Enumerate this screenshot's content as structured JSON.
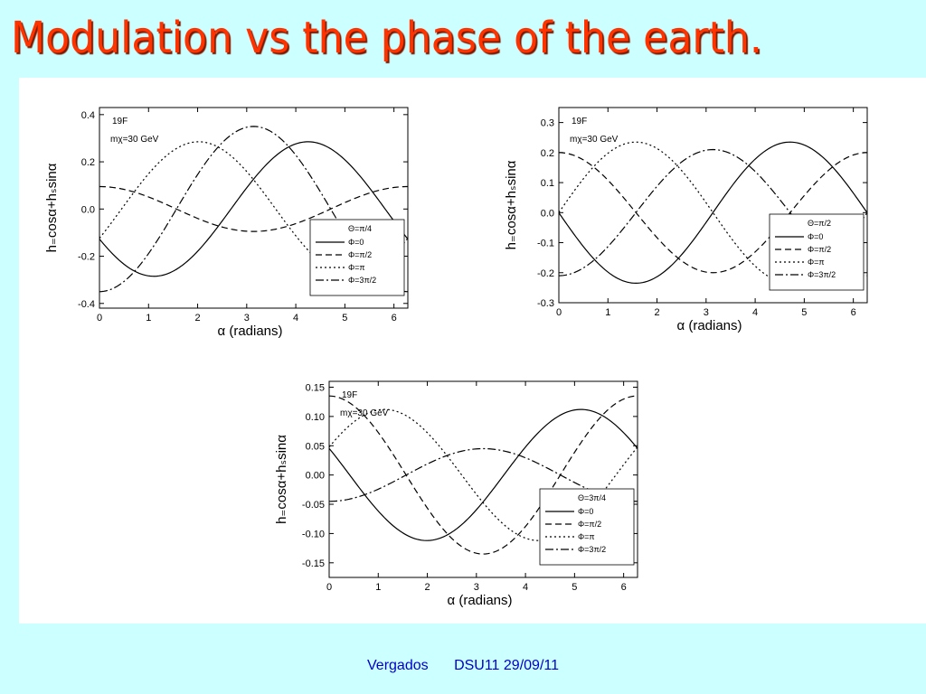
{
  "slide": {
    "title": "Modulation vs the phase of the earth."
  },
  "footer": {
    "author": "Vergados",
    "event_date": "DSU11  29/09/11"
  },
  "chart_data": [
    {
      "type": "line",
      "isotope": "19F",
      "mass_label": "mχ=30 GeV",
      "xlabel": "α (radians)",
      "ylabel": "h₌cosα+hₛsinα",
      "xlim": [
        0,
        6.283
      ],
      "ylim": [
        -0.42,
        0.43
      ],
      "xticks": [
        0,
        1,
        2,
        3,
        4,
        5,
        6
      ],
      "yticks": [
        -0.4,
        -0.2,
        0.0,
        0.2,
        0.4
      ],
      "ytick_labels": [
        "-0.4",
        "-0.2",
        "0.0",
        "0.2",
        "0.4"
      ],
      "legend_title": "Θ=π/4",
      "legend_position": "lower-right",
      "series": [
        {
          "name": "Φ=0",
          "style": "solid",
          "amplitude": 0.285,
          "peak_alpha": 4.25
        },
        {
          "name": "Φ=π/2",
          "style": "dashed",
          "amplitude": 0.095,
          "peak_alpha": 6.28
        },
        {
          "name": "Φ=π",
          "style": "dotted",
          "amplitude": 0.285,
          "peak_alpha": 2.02
        },
        {
          "name": "Φ=3π/2",
          "style": "dashdot",
          "amplitude": 0.35,
          "peak_alpha": 3.14
        }
      ]
    },
    {
      "type": "line",
      "isotope": "19F",
      "mass_label": "mχ=30 GeV",
      "xlabel": "α (radians)",
      "ylabel": "h₌cosα+hₛsinα",
      "xlim": [
        0,
        6.283
      ],
      "ylim": [
        -0.3,
        0.35
      ],
      "xticks": [
        0,
        1,
        2,
        3,
        4,
        5,
        6
      ],
      "yticks": [
        -0.3,
        -0.2,
        -0.1,
        0.0,
        0.1,
        0.2,
        0.3
      ],
      "ytick_labels": [
        "-0.3",
        "-0.2",
        "-0.1",
        "0.0",
        "0.1",
        "0.2",
        "0.3"
      ],
      "legend_title": "Θ=π/2",
      "legend_position": "lower-right",
      "series": [
        {
          "name": "Φ=0",
          "style": "solid",
          "amplitude": 0.235,
          "peak_alpha": 4.71
        },
        {
          "name": "Φ=π/2",
          "style": "dashed",
          "amplitude": 0.2,
          "peak_alpha": 0.0
        },
        {
          "name": "Φ=π",
          "style": "dotted",
          "amplitude": 0.235,
          "peak_alpha": 1.57
        },
        {
          "name": "Φ=3π/2",
          "style": "dashdot",
          "amplitude": 0.21,
          "peak_alpha": 3.14
        }
      ]
    },
    {
      "type": "line",
      "isotope": "19F",
      "mass_label": "mχ=30 GeV",
      "xlabel": "α (radians)",
      "ylabel": "h₌cosα+hₛsinα",
      "xlim": [
        0,
        6.283
      ],
      "ylim": [
        -0.175,
        0.16
      ],
      "xticks": [
        0,
        1,
        2,
        3,
        4,
        5,
        6
      ],
      "yticks": [
        -0.15,
        -0.1,
        -0.05,
        0.0,
        0.05,
        0.1,
        0.15
      ],
      "ytick_labels": [
        "-0.15",
        "-0.10",
        "-0.05",
        "0.00",
        "0.05",
        "0.10",
        "0.15"
      ],
      "legend_title": "Θ=3π/4",
      "legend_position": "lower-right",
      "series": [
        {
          "name": "Φ=0",
          "style": "solid",
          "amplitude": 0.112,
          "peak_alpha": 5.13
        },
        {
          "name": "Φ=π/2",
          "style": "dashed",
          "amplitude": 0.135,
          "peak_alpha": 6.28
        },
        {
          "name": "Φ=π",
          "style": "dotted",
          "amplitude": 0.112,
          "peak_alpha": 1.13
        },
        {
          "name": "Φ=3π/2",
          "style": "dashdot",
          "amplitude": 0.045,
          "peak_alpha": 3.14
        }
      ]
    }
  ]
}
